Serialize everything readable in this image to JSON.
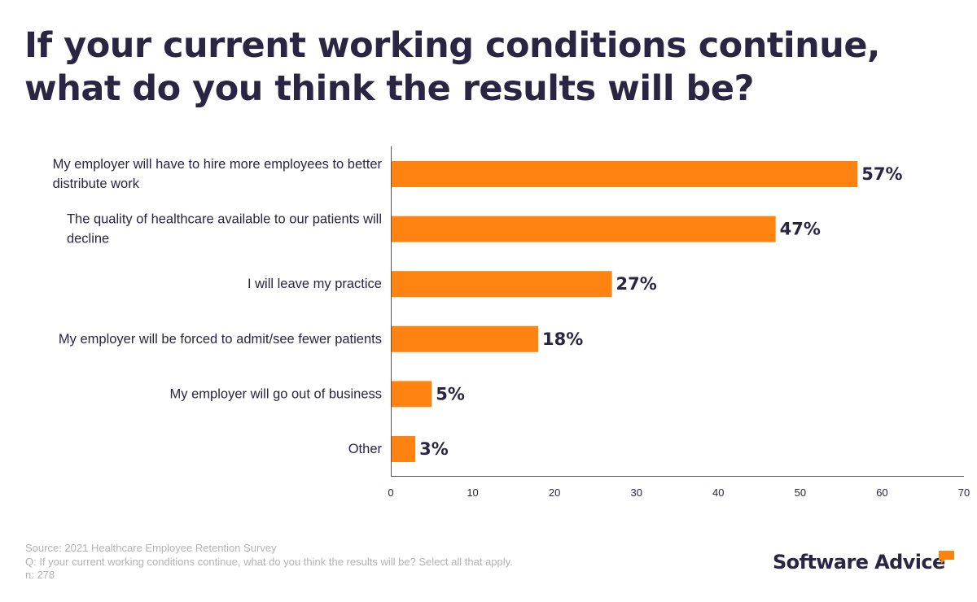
{
  "title": "If your current working conditions continue, what do you think the results will be?",
  "chart_data": {
    "type": "bar",
    "orientation": "horizontal",
    "categories": [
      [
        "My employer will have to hire more employees to better",
        "distribute work"
      ],
      [
        "The quality of healthcare available to our patients will",
        "decline"
      ],
      [
        "I will leave my practice"
      ],
      [
        "My employer will be forced to admit/see fewer patients"
      ],
      [
        "My employer will go out of business"
      ],
      [
        "Other"
      ]
    ],
    "values": [
      57,
      47,
      27,
      18,
      5,
      3
    ],
    "value_labels": [
      "57%",
      "47%",
      "27%",
      "18%",
      "5%",
      "3%"
    ],
    "xlim": [
      0,
      70
    ],
    "xticks": [
      "0",
      "10",
      "20",
      "30",
      "40",
      "50",
      "60",
      "70"
    ],
    "bar_color": "#ff8311",
    "grid": false
  },
  "footer": {
    "source": "Source: 2021 Healthcare Employee Retention Survey",
    "question": "Q: If your current working conditions continue, what do you think the results will be? Select all that apply.",
    "n": "n: 278"
  },
  "logo": {
    "text": "Software Advice",
    "accent_color": "#ff8311",
    "icon": "speech-bubble-icon"
  },
  "colors": {
    "text": "#2a2542",
    "footer_text": "#b3b3b3"
  }
}
